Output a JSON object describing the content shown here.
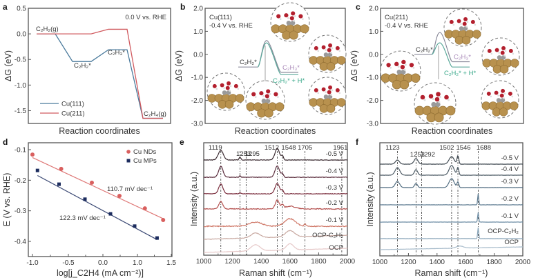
{
  "figure": {
    "panels": [
      "a",
      "b",
      "c",
      "d",
      "e",
      "f"
    ]
  },
  "chart_data": [
    {
      "id": "a",
      "type": "line",
      "panel_label": "a",
      "title": "",
      "annotation": "0.0 V vs. RHE",
      "xlabel": "Reaction coordinates",
      "ylabel": "ΔG (eV)",
      "ylim": [
        -1.75,
        0.5
      ],
      "yticks": [
        0.5,
        0.0,
        -0.5,
        -1.0,
        -1.5
      ],
      "ytick_labels": [
        "0.5",
        "0.0",
        "-0.5",
        "-1.0",
        "-1.5"
      ],
      "categories": [
        "C2H2(g)",
        "C2H2*",
        "C2H3*",
        "C2H4(g)"
      ],
      "category_labels": [
        "C₂H₂(g)",
        "C₂H₂*",
        "C₂H₃*",
        "C₂H₄(g)"
      ],
      "series": [
        {
          "name": "Cu(111)",
          "color": "#4a7a9c",
          "values": [
            0.0,
            -0.54,
            -0.31,
            -1.65
          ]
        },
        {
          "name": "Cu(211)",
          "color": "#d0595e",
          "values": [
            0.0,
            0.0,
            0.09,
            -1.65
          ]
        }
      ],
      "legend": {
        "position": "bottom-left",
        "entries": [
          "Cu(111)",
          "Cu(211)"
        ]
      }
    },
    {
      "id": "b",
      "type": "line",
      "panel_label": "b",
      "annotation_lines": [
        "Cu(111)",
        "-0.4 V vs. RHE"
      ],
      "xlabel": "Reaction coordinates",
      "ylabel": "ΔG (eV)",
      "ylim": [
        -3.0,
        2.0
      ],
      "yticks": [
        2.0,
        1.0,
        0.0,
        -1.0,
        -2.0,
        -3.0
      ],
      "ytick_labels": [
        "2.0",
        "1.0",
        "0.0",
        "-1.0",
        "-2.0",
        "-3.0"
      ],
      "states": {
        "initial": {
          "label": "C₂H₂*",
          "value": -0.55
        },
        "ts_upper": 0.6,
        "ts_lower": 0.5,
        "final_1": {
          "label": "C₂H₃*",
          "value": -0.78,
          "color": "#a888b8"
        },
        "final_2": {
          "label": "C₂H₂* + H*",
          "value": -0.88,
          "color": "#3aa88a"
        }
      },
      "insets": [
        "structure-initial",
        "structure-bottom",
        "structure-ts",
        "structure-right-top",
        "structure-right-bottom"
      ]
    },
    {
      "id": "c",
      "type": "line",
      "panel_label": "c",
      "annotation_lines": [
        "Cu(211)",
        "-0.4 V vs. RHE"
      ],
      "xlabel": "Reaction coordinates",
      "ylabel": "ΔG (eV)",
      "ylim": [
        -3.0,
        2.0
      ],
      "yticks": [
        2.0,
        1.0,
        0.0,
        -1.0,
        -2.0,
        -3.0
      ],
      "ytick_labels": [
        "2.0",
        "1.0",
        "0.0",
        "-1.0",
        "-2.0",
        "-3.0"
      ],
      "states": {
        "initial": {
          "label": "C₂H₂*",
          "value": 0.0
        },
        "ts_upper": 0.95,
        "ts_lower": 0.5,
        "final_1": {
          "label": "C₂H₃*",
          "value": -0.32,
          "color": "#a888b8"
        },
        "final_2": {
          "label": "C₂H₂* + H*",
          "value": -0.55,
          "color": "#3aa88a"
        }
      },
      "insets": [
        "structure-left",
        "structure-bottom",
        "structure-ts",
        "structure-right-top",
        "structure-right-bottom"
      ]
    },
    {
      "id": "d",
      "type": "scatter",
      "panel_label": "d",
      "xlabel": "log[j_C2H4 (mA cm⁻²)]",
      "ylabel": "E (V vs. RHE)",
      "xtick_labels": [
        "-1.0",
        "-0.5",
        "0.0",
        "1.0",
        "1.5"
      ],
      "xlim_tick_index": [
        0,
        4
      ],
      "ylim": [
        -0.45,
        -0.08
      ],
      "yticks": [
        -0.1,
        -0.2,
        -0.3,
        -0.4
      ],
      "ytick_labels": [
        "-0.1",
        "-0.2",
        "-0.3",
        "-0.4"
      ],
      "series": [
        {
          "name": "Cu NDs",
          "color": "#d9605f",
          "marker": "circle",
          "x": [
            -1.0,
            -0.6,
            -0.16,
            0.48,
            1.11,
            1.38
          ],
          "y": [
            -0.116,
            -0.163,
            -0.208,
            -0.251,
            -0.292,
            -0.33
          ],
          "slope_label": "110.7 mV dec⁻¹"
        },
        {
          "name": "Cu MPs",
          "color": "#1c2c5e",
          "marker": "square",
          "x": [
            -0.93,
            -0.63,
            -0.26,
            0.22,
            0.92,
            1.29
          ],
          "y": [
            -0.168,
            -0.213,
            -0.262,
            -0.31,
            -0.35,
            -0.389
          ],
          "slope_label": "122.3 mV dec⁻¹"
        }
      ],
      "legend": {
        "position": "top-right",
        "entries": [
          "Cu NDs",
          "Cu MPs"
        ]
      }
    },
    {
      "id": "e",
      "type": "line",
      "panel_label": "e",
      "xlabel": "Raman shift (cm⁻¹)",
      "ylabel": "Intensity (a.u.)",
      "xlim": [
        1000,
        2000
      ],
      "xticks": [
        1000,
        1200,
        1400,
        1600,
        1800,
        2000
      ],
      "peak_lines": [
        1119,
        1253,
        1295,
        1512,
        1548,
        1705,
        1961
      ],
      "peak_labels": [
        "1119",
        "1253",
        "1295",
        "1512",
        "1548",
        "1705",
        "1961"
      ],
      "series": [
        {
          "name": "-0.5 V",
          "color": "#3a2a30",
          "peaks": [
            [
              1119,
              14,
              28
            ],
            [
              1253,
              4,
              10
            ],
            [
              1512,
              17,
              25
            ],
            [
              1548,
              6,
              12
            ]
          ]
        },
        {
          "name": "-0.4 V",
          "color": "#5a2c3c",
          "peaks": [
            [
              1119,
              16,
              24
            ],
            [
              1253,
              2,
              8
            ],
            [
              1512,
              16,
              25
            ],
            [
              1548,
              5,
              12
            ]
          ]
        },
        {
          "name": "-0.3 V",
          "color": "#7a2c3c",
          "peaks": [
            [
              1119,
              14,
              24
            ],
            [
              1253,
              2,
              8
            ],
            [
              1512,
              15,
              25
            ],
            [
              1548,
              5,
              12
            ]
          ]
        },
        {
          "name": "-0.2 V",
          "color": "#b4504e",
          "peaks": [
            [
              1119,
              11,
              22
            ],
            [
              1512,
              13,
              22
            ],
            [
              1548,
              5,
              12
            ],
            [
              1600,
              4,
              60
            ]
          ]
        },
        {
          "name": "-0.1 V",
          "color": "#d07a6a",
          "peaks": [
            [
              1360,
              6,
              70
            ],
            [
              1600,
              11,
              60
            ],
            [
              1705,
              3,
              10
            ]
          ]
        },
        {
          "name": "OCP-C₂H₂",
          "color": "#c8a8a0",
          "peaks": [
            [
              1360,
              7,
              50
            ],
            [
              1600,
              9,
              50
            ]
          ]
        },
        {
          "name": "OCP",
          "color": "#e6c8c8",
          "peaks": [
            [
              1360,
              9,
              50
            ],
            [
              1600,
              9,
              40
            ]
          ]
        }
      ]
    },
    {
      "id": "f",
      "type": "line",
      "panel_label": "f",
      "xlabel": "Raman shift (cm⁻¹)",
      "ylabel": "Intensity (a.u.)",
      "xlim": [
        1000,
        2000
      ],
      "xticks": [
        1000,
        1200,
        1400,
        1600,
        1800,
        2000
      ],
      "peak_lines": [
        1123,
        1253,
        1292,
        1502,
        1546,
        1688
      ],
      "peak_labels": [
        "1123",
        "1253",
        "1292",
        "1502",
        "1546",
        "1688"
      ],
      "series": [
        {
          "name": "-0.5 V",
          "color": "#404a52",
          "peaks": [
            [
              1123,
              6,
              22
            ],
            [
              1253,
              8,
              22
            ],
            [
              1502,
              11,
              28
            ],
            [
              1546,
              12,
              10
            ]
          ]
        },
        {
          "name": "-0.4 V",
          "color": "#4c5a64",
          "peaks": [
            [
              1123,
              11,
              26
            ],
            [
              1253,
              8,
              18
            ],
            [
              1502,
              14,
              28
            ],
            [
              1546,
              11,
              10
            ]
          ]
        },
        {
          "name": "-0.3 V",
          "color": "#506c80",
          "peaks": [
            [
              1123,
              9,
              24
            ],
            [
              1253,
              6,
              16
            ],
            [
              1502,
              13,
              28
            ],
            [
              1546,
              8,
              10
            ]
          ]
        },
        {
          "name": "-0.2 V",
          "color": "#5c7a90",
          "peaks": [
            [
              1688,
              16,
              6
            ]
          ]
        },
        {
          "name": "-0.1 V",
          "color": "#6c8ca4",
          "peaks": [
            [
              1688,
              14,
              6
            ]
          ]
        },
        {
          "name": "OCP-C₂H₂",
          "color": "#88a4b8",
          "peaks": [
            [
              1688,
              16,
              6
            ]
          ]
        },
        {
          "name": "OCP",
          "color": "#a8bccb",
          "peaks": [
            [
              1560,
              3,
              40
            ]
          ]
        }
      ]
    }
  ]
}
